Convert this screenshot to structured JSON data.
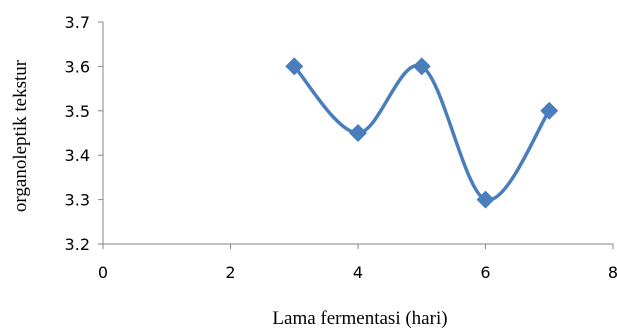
{
  "chart_data": {
    "type": "line",
    "title": "",
    "xlabel": "Lama fermentasi (hari)",
    "ylabel": "organoleptik tekstur",
    "xlim": [
      0,
      8
    ],
    "ylim": [
      3.2,
      3.7
    ],
    "x_ticks": [
      "0",
      "2",
      "4",
      "6",
      "8"
    ],
    "y_ticks": [
      "3.2",
      "3.3",
      "3.4",
      "3.5",
      "3.6",
      "3.7"
    ],
    "grid": false,
    "legend": "none",
    "smooth": true,
    "series": [
      {
        "color": "#4A7EBB",
        "marker": "diamond",
        "x": [
          3,
          4,
          5,
          6,
          7
        ],
        "y": [
          3.6,
          3.45,
          3.6,
          3.3,
          3.5
        ]
      }
    ]
  }
}
